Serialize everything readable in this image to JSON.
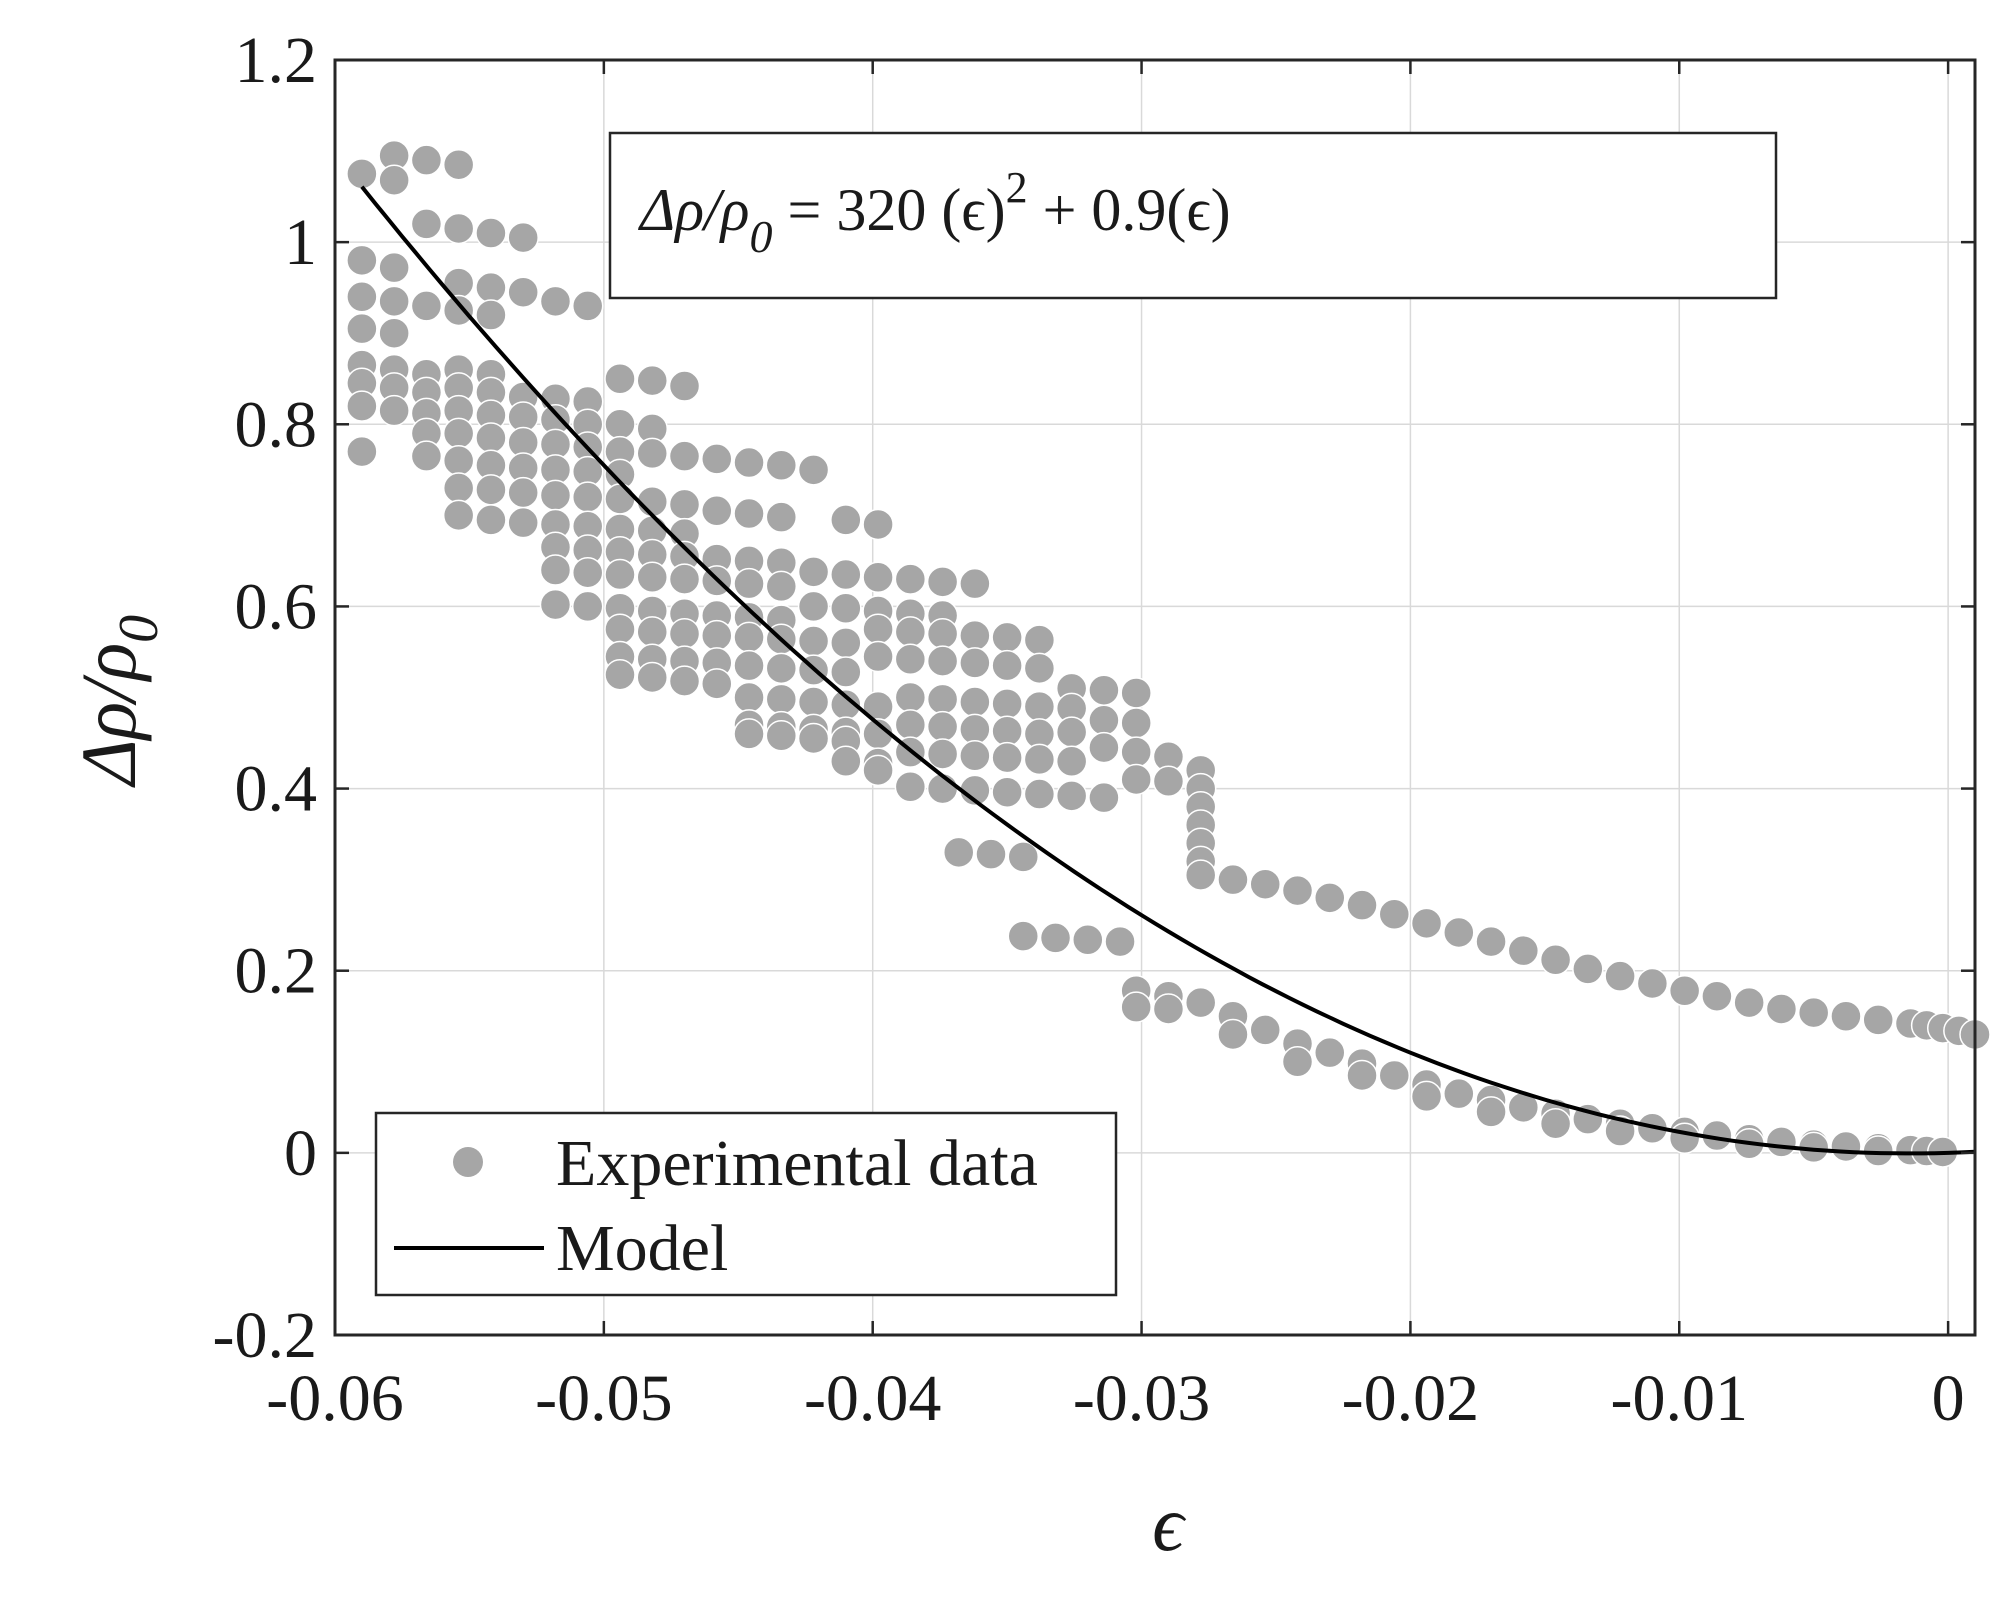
{
  "chart_data": {
    "type": "scatter",
    "title": "",
    "xlabel": "ϵ",
    "ylabel": "Δρ/ρ0",
    "xlim": [
      -0.06,
      0.001
    ],
    "ylim": [
      -0.2,
      1.2
    ],
    "x_ticks": [
      -0.06,
      -0.05,
      -0.04,
      -0.03,
      -0.02,
      -0.01,
      0
    ],
    "x_tick_labels": [
      "-0.06",
      "-0.05",
      "-0.04",
      "-0.03",
      "-0.02",
      "-0.01",
      "0"
    ],
    "y_ticks": [
      -0.2,
      0,
      0.2,
      0.4,
      0.6,
      0.8,
      1,
      1.2
    ],
    "y_tick_labels": [
      "-0.2",
      "0",
      "0.2",
      "0.4",
      "0.6",
      "0.8",
      "1",
      "1.2"
    ],
    "grid": true,
    "legend_position": "bottom-left",
    "annotation": {
      "lhs": "Δρ/ρ",
      "lhs_sub": "0",
      "rhs_a": " = 320 (ϵ)",
      "rhs_sup": "2",
      "rhs_b": " + 0.9(ϵ)"
    },
    "model": {
      "name": "Model",
      "equation": "320*x^2 + 0.9*x",
      "a": 320,
      "b": 0.9,
      "x_range": [
        -0.059,
        0.001
      ],
      "color": "#000000"
    },
    "series": [
      {
        "name": "Experimental data",
        "color": "#a6a6a6",
        "points": [
          [
            -0.059,
            1.075
          ],
          [
            -0.0578,
            1.095
          ],
          [
            -0.0566,
            1.09
          ],
          [
            -0.0554,
            1.085
          ],
          [
            -0.0578,
            1.068
          ],
          [
            -0.0566,
            1.02
          ],
          [
            -0.0554,
            1.015
          ],
          [
            -0.0542,
            1.01
          ],
          [
            -0.053,
            1.005
          ],
          [
            -0.059,
            0.98
          ],
          [
            -0.0578,
            0.972
          ],
          [
            -0.0554,
            0.955
          ],
          [
            -0.0542,
            0.95
          ],
          [
            -0.053,
            0.945
          ],
          [
            -0.0518,
            0.935
          ],
          [
            -0.0506,
            0.93
          ],
          [
            -0.059,
            0.94
          ],
          [
            -0.0578,
            0.935
          ],
          [
            -0.0566,
            0.93
          ],
          [
            -0.0554,
            0.925
          ],
          [
            -0.0542,
            0.92
          ],
          [
            -0.059,
            0.905
          ],
          [
            -0.0578,
            0.9
          ],
          [
            -0.059,
            0.865
          ],
          [
            -0.0578,
            0.86
          ],
          [
            -0.0566,
            0.855
          ],
          [
            -0.0554,
            0.86
          ],
          [
            -0.0542,
            0.855
          ],
          [
            -0.059,
            0.845
          ],
          [
            -0.0578,
            0.84
          ],
          [
            -0.0566,
            0.835
          ],
          [
            -0.0554,
            0.84
          ],
          [
            -0.0542,
            0.835
          ],
          [
            -0.053,
            0.83
          ],
          [
            -0.0518,
            0.828
          ],
          [
            -0.0506,
            0.825
          ],
          [
            -0.0494,
            0.85
          ],
          [
            -0.0482,
            0.848
          ],
          [
            -0.047,
            0.842
          ],
          [
            -0.059,
            0.82
          ],
          [
            -0.0578,
            0.815
          ],
          [
            -0.0566,
            0.812
          ],
          [
            -0.0554,
            0.815
          ],
          [
            -0.0542,
            0.81
          ],
          [
            -0.053,
            0.808
          ],
          [
            -0.0518,
            0.805
          ],
          [
            -0.0506,
            0.8
          ],
          [
            -0.0494,
            0.8
          ],
          [
            -0.0482,
            0.795
          ],
          [
            -0.059,
            0.77
          ],
          [
            -0.0566,
            0.79
          ],
          [
            -0.0554,
            0.79
          ],
          [
            -0.0542,
            0.785
          ],
          [
            -0.053,
            0.78
          ],
          [
            -0.0518,
            0.778
          ],
          [
            -0.0506,
            0.775
          ],
          [
            -0.0494,
            0.77
          ],
          [
            -0.0482,
            0.768
          ],
          [
            -0.0566,
            0.765
          ],
          [
            -0.0554,
            0.76
          ],
          [
            -0.0542,
            0.755
          ],
          [
            -0.053,
            0.752
          ],
          [
            -0.0518,
            0.75
          ],
          [
            -0.0506,
            0.748
          ],
          [
            -0.0494,
            0.745
          ],
          [
            -0.047,
            0.765
          ],
          [
            -0.0458,
            0.762
          ],
          [
            -0.0446,
            0.758
          ],
          [
            -0.0434,
            0.755
          ],
          [
            -0.0422,
            0.75
          ],
          [
            -0.0554,
            0.73
          ],
          [
            -0.0542,
            0.728
          ],
          [
            -0.053,
            0.725
          ],
          [
            -0.0518,
            0.722
          ],
          [
            -0.0506,
            0.72
          ],
          [
            -0.0494,
            0.718
          ],
          [
            -0.0482,
            0.715
          ],
          [
            -0.047,
            0.712
          ],
          [
            -0.0554,
            0.7
          ],
          [
            -0.0542,
            0.695
          ],
          [
            -0.053,
            0.692
          ],
          [
            -0.0518,
            0.69
          ],
          [
            -0.0506,
            0.688
          ],
          [
            -0.0494,
            0.685
          ],
          [
            -0.0482,
            0.683
          ],
          [
            -0.047,
            0.68
          ],
          [
            -0.0458,
            0.705
          ],
          [
            -0.0446,
            0.702
          ],
          [
            -0.0434,
            0.698
          ],
          [
            -0.041,
            0.695
          ],
          [
            -0.0398,
            0.69
          ],
          [
            -0.0518,
            0.665
          ],
          [
            -0.0506,
            0.662
          ],
          [
            -0.0494,
            0.66
          ],
          [
            -0.0482,
            0.657
          ],
          [
            -0.047,
            0.655
          ],
          [
            -0.0458,
            0.652
          ],
          [
            -0.0446,
            0.65
          ],
          [
            -0.0434,
            0.648
          ],
          [
            -0.0518,
            0.64
          ],
          [
            -0.0506,
            0.637
          ],
          [
            -0.0494,
            0.635
          ],
          [
            -0.0482,
            0.632
          ],
          [
            -0.047,
            0.63
          ],
          [
            -0.0458,
            0.628
          ],
          [
            -0.0446,
            0.625
          ],
          [
            -0.0434,
            0.622
          ],
          [
            -0.0422,
            0.638
          ],
          [
            -0.041,
            0.635
          ],
          [
            -0.0398,
            0.632
          ],
          [
            -0.0386,
            0.63
          ],
          [
            -0.0374,
            0.627
          ],
          [
            -0.0362,
            0.625
          ],
          [
            -0.0518,
            0.602
          ],
          [
            -0.0506,
            0.6
          ],
          [
            -0.0494,
            0.598
          ],
          [
            -0.0482,
            0.595
          ],
          [
            -0.047,
            0.592
          ],
          [
            -0.0458,
            0.59
          ],
          [
            -0.0446,
            0.588
          ],
          [
            -0.0434,
            0.585
          ],
          [
            -0.0422,
            0.6
          ],
          [
            -0.041,
            0.598
          ],
          [
            -0.0398,
            0.595
          ],
          [
            -0.0386,
            0.592
          ],
          [
            -0.0374,
            0.59
          ],
          [
            -0.0494,
            0.575
          ],
          [
            -0.0482,
            0.572
          ],
          [
            -0.047,
            0.57
          ],
          [
            -0.0458,
            0.568
          ],
          [
            -0.0446,
            0.566
          ],
          [
            -0.0434,
            0.564
          ],
          [
            -0.0422,
            0.562
          ],
          [
            -0.041,
            0.56
          ],
          [
            -0.0398,
            0.575
          ],
          [
            -0.0386,
            0.572
          ],
          [
            -0.0374,
            0.57
          ],
          [
            -0.0362,
            0.568
          ],
          [
            -0.035,
            0.566
          ],
          [
            -0.0338,
            0.563
          ],
          [
            -0.0494,
            0.545
          ],
          [
            -0.0482,
            0.542
          ],
          [
            -0.047,
            0.54
          ],
          [
            -0.0458,
            0.538
          ],
          [
            -0.0446,
            0.535
          ],
          [
            -0.0434,
            0.532
          ],
          [
            -0.0422,
            0.53
          ],
          [
            -0.041,
            0.528
          ],
          [
            -0.0398,
            0.545
          ],
          [
            -0.0386,
            0.542
          ],
          [
            -0.0374,
            0.54
          ],
          [
            -0.0362,
            0.538
          ],
          [
            -0.035,
            0.535
          ],
          [
            -0.0338,
            0.532
          ],
          [
            -0.0494,
            0.525
          ],
          [
            -0.0482,
            0.522
          ],
          [
            -0.047,
            0.518
          ],
          [
            -0.0458,
            0.515
          ],
          [
            -0.0326,
            0.51
          ],
          [
            -0.0314,
            0.508
          ],
          [
            -0.0302,
            0.505
          ],
          [
            -0.0446,
            0.5
          ],
          [
            -0.0434,
            0.498
          ],
          [
            -0.0422,
            0.495
          ],
          [
            -0.041,
            0.492
          ],
          [
            -0.0398,
            0.49
          ],
          [
            -0.0386,
            0.5
          ],
          [
            -0.0374,
            0.498
          ],
          [
            -0.0362,
            0.495
          ],
          [
            -0.035,
            0.493
          ],
          [
            -0.0338,
            0.49
          ],
          [
            -0.0326,
            0.488
          ],
          [
            -0.0446,
            0.47
          ],
          [
            -0.0434,
            0.468
          ],
          [
            -0.0422,
            0.465
          ],
          [
            -0.041,
            0.462
          ],
          [
            -0.0398,
            0.46
          ],
          [
            -0.0386,
            0.47
          ],
          [
            -0.0374,
            0.468
          ],
          [
            -0.0362,
            0.465
          ],
          [
            -0.035,
            0.463
          ],
          [
            -0.0338,
            0.46
          ],
          [
            -0.0326,
            0.462
          ],
          [
            -0.0314,
            0.475
          ],
          [
            -0.0302,
            0.472
          ],
          [
            -0.0446,
            0.46
          ],
          [
            -0.0434,
            0.458
          ],
          [
            -0.0422,
            0.455
          ],
          [
            -0.041,
            0.452
          ],
          [
            -0.041,
            0.43
          ],
          [
            -0.0398,
            0.428
          ],
          [
            -0.0386,
            0.44
          ],
          [
            -0.0374,
            0.438
          ],
          [
            -0.0362,
            0.436
          ],
          [
            -0.035,
            0.434
          ],
          [
            -0.0338,
            0.432
          ],
          [
            -0.0326,
            0.43
          ],
          [
            -0.0314,
            0.445
          ],
          [
            -0.0302,
            0.44
          ],
          [
            -0.029,
            0.435
          ],
          [
            -0.0398,
            0.42
          ],
          [
            -0.0386,
            0.402
          ],
          [
            -0.0374,
            0.4
          ],
          [
            -0.0362,
            0.398
          ],
          [
            -0.035,
            0.396
          ],
          [
            -0.0338,
            0.394
          ],
          [
            -0.0326,
            0.392
          ],
          [
            -0.0314,
            0.39
          ],
          [
            -0.0302,
            0.41
          ],
          [
            -0.029,
            0.408
          ],
          [
            -0.0278,
            0.42
          ],
          [
            -0.0278,
            0.4
          ],
          [
            -0.0278,
            0.38
          ],
          [
            -0.0278,
            0.36
          ],
          [
            -0.0278,
            0.34
          ],
          [
            -0.0278,
            0.32
          ],
          [
            -0.0278,
            0.305
          ],
          [
            -0.0368,
            0.33
          ],
          [
            -0.0356,
            0.328
          ],
          [
            -0.0344,
            0.325
          ],
          [
            -0.0344,
            0.238
          ],
          [
            -0.0332,
            0.236
          ],
          [
            -0.032,
            0.234
          ],
          [
            -0.0308,
            0.232
          ],
          [
            -0.0266,
            0.3
          ],
          [
            -0.0254,
            0.295
          ],
          [
            -0.0242,
            0.288
          ],
          [
            -0.023,
            0.28
          ],
          [
            -0.0218,
            0.272
          ],
          [
            -0.0206,
            0.262
          ],
          [
            -0.0194,
            0.252
          ],
          [
            -0.0182,
            0.242
          ],
          [
            -0.017,
            0.232
          ],
          [
            -0.0158,
            0.222
          ],
          [
            -0.0146,
            0.212
          ],
          [
            -0.0134,
            0.202
          ],
          [
            -0.0122,
            0.194
          ],
          [
            -0.011,
            0.186
          ],
          [
            -0.0098,
            0.178
          ],
          [
            -0.0086,
            0.172
          ],
          [
            -0.0074,
            0.165
          ],
          [
            -0.0062,
            0.158
          ],
          [
            -0.005,
            0.154
          ],
          [
            -0.0038,
            0.15
          ],
          [
            -0.0026,
            0.146
          ],
          [
            -0.0014,
            0.142
          ],
          [
            -0.0008,
            0.14
          ],
          [
            -0.0002,
            0.137
          ],
          [
            0.0004,
            0.134
          ],
          [
            0.001,
            0.13
          ],
          [
            -0.0302,
            0.178
          ],
          [
            -0.029,
            0.172
          ],
          [
            -0.0278,
            0.165
          ],
          [
            -0.0266,
            0.15
          ],
          [
            -0.0254,
            0.135
          ],
          [
            -0.0242,
            0.12
          ],
          [
            -0.023,
            0.11
          ],
          [
            -0.0218,
            0.098
          ],
          [
            -0.0206,
            0.085
          ],
          [
            -0.0194,
            0.075
          ],
          [
            -0.0182,
            0.065
          ],
          [
            -0.017,
            0.058
          ],
          [
            -0.0158,
            0.05
          ],
          [
            -0.0146,
            0.043
          ],
          [
            -0.0134,
            0.037
          ],
          [
            -0.0122,
            0.032
          ],
          [
            -0.011,
            0.027
          ],
          [
            -0.0098,
            0.023
          ],
          [
            -0.0086,
            0.019
          ],
          [
            -0.0074,
            0.015
          ],
          [
            -0.0062,
            0.012
          ],
          [
            -0.005,
            0.009
          ],
          [
            -0.0038,
            0.007
          ],
          [
            -0.0026,
            0.005
          ],
          [
            -0.0014,
            0.003
          ],
          [
            -0.0008,
            0.002
          ],
          [
            -0.0002,
            0.001
          ],
          [
            -0.0302,
            0.16
          ],
          [
            -0.029,
            0.158
          ],
          [
            -0.0266,
            0.13
          ],
          [
            -0.0242,
            0.1
          ],
          [
            -0.0218,
            0.085
          ],
          [
            -0.0194,
            0.062
          ],
          [
            -0.017,
            0.045
          ],
          [
            -0.0146,
            0.032
          ],
          [
            -0.0122,
            0.024
          ],
          [
            -0.0098,
            0.016
          ],
          [
            -0.0074,
            0.01
          ],
          [
            -0.005,
            0.006
          ],
          [
            -0.0026,
            0.002
          ]
        ]
      }
    ]
  },
  "legend": {
    "items": [
      {
        "label": "Experimental data",
        "kind": "marker",
        "color": "#a6a6a6"
      },
      {
        "label": "Model",
        "kind": "line",
        "color": "#000000"
      }
    ]
  }
}
